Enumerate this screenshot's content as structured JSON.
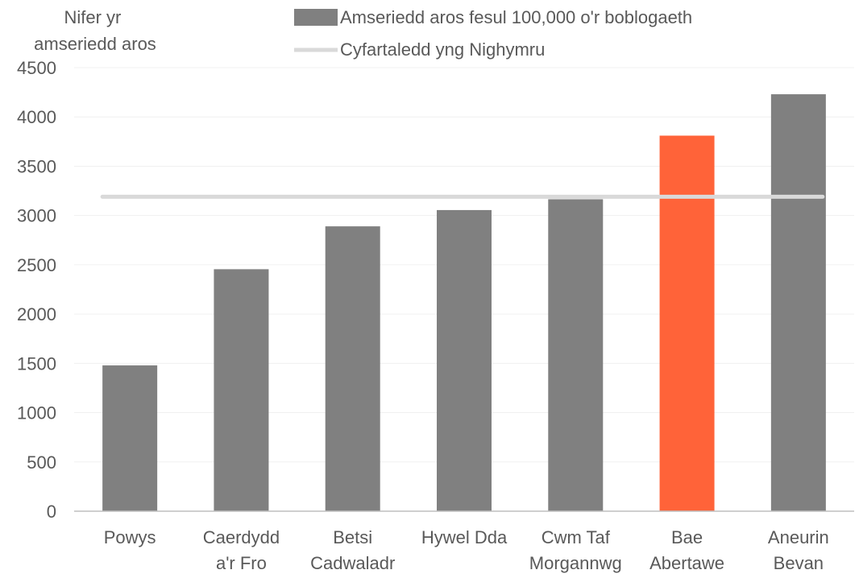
{
  "chart_data": {
    "type": "bar",
    "ylabel": [
      "Nifer yr",
      "amseriedd aros"
    ],
    "ylim": [
      0,
      4500
    ],
    "yticks": [
      0,
      500,
      1000,
      1500,
      2000,
      2500,
      3000,
      3500,
      4000,
      4500
    ],
    "grid": true,
    "legend_position": "top",
    "categories": [
      [
        "Powys"
      ],
      [
        "Caerdydd",
        "a'r Fro"
      ],
      [
        "Betsi",
        "Cadwaladr"
      ],
      [
        "Hywel Dda"
      ],
      [
        "Cwm Taf",
        "Morgannwg"
      ],
      [
        "Bae",
        "Abertawe"
      ],
      [
        "Aneurin",
        "Bevan"
      ]
    ],
    "series": [
      {
        "name": "Amseriedd aros fesul 100,000 o'r boblogaeth",
        "kind": "bar",
        "color": "#808080",
        "highlight_color": "#FF6339",
        "highlight_index": 5,
        "values": [
          1480,
          2455,
          2890,
          3055,
          3165,
          3810,
          4230
        ]
      },
      {
        "name": "Cyfartaledd yng Nighymru",
        "kind": "line",
        "color": "#D9D9D9",
        "value": 3190
      }
    ]
  }
}
